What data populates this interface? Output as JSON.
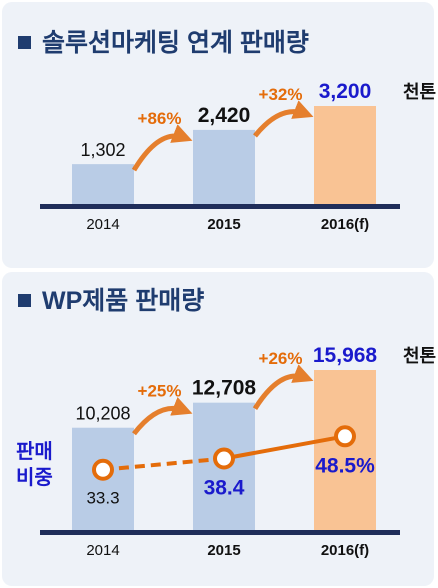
{
  "colors": {
    "title": "#1f3c6f",
    "bar_past": "#b9cce6",
    "bar_forecast": "#f9c394",
    "baseline": "#1f2d5a",
    "growth": "#e46c0a",
    "emphasis": "#1a1acc",
    "share_line": "#e46c0a",
    "label": "#111111"
  },
  "chart_data": [
    {
      "type": "bar",
      "title": "솔루션마케팅 연계 판매량",
      "unit": "천톤",
      "categories": [
        "2014",
        "2015",
        "2016(f)"
      ],
      "values": [
        1302,
        2420,
        3200
      ],
      "value_labels": [
        "1,302",
        "2,420",
        "3,200"
      ],
      "growth_labels": [
        "+86%",
        "+32%"
      ],
      "highlight": [
        false,
        true,
        "forecast"
      ]
    },
    {
      "type": "bar",
      "title": "WP제품 판매량",
      "unit": "천톤",
      "categories": [
        "2014",
        "2015",
        "2016(f)"
      ],
      "values": [
        10208,
        12708,
        15968
      ],
      "value_labels": [
        "10,208",
        "12,708",
        "15,968"
      ],
      "growth_labels": [
        "+25%",
        "+26%"
      ],
      "highlight": [
        false,
        true,
        "forecast"
      ],
      "share_series": {
        "name": "판매비중",
        "name_lines": [
          "판매",
          "비중"
        ],
        "values": [
          33.3,
          38.4,
          48.5
        ],
        "value_labels": [
          "33.3",
          "38.4",
          "48.5%"
        ]
      }
    }
  ]
}
